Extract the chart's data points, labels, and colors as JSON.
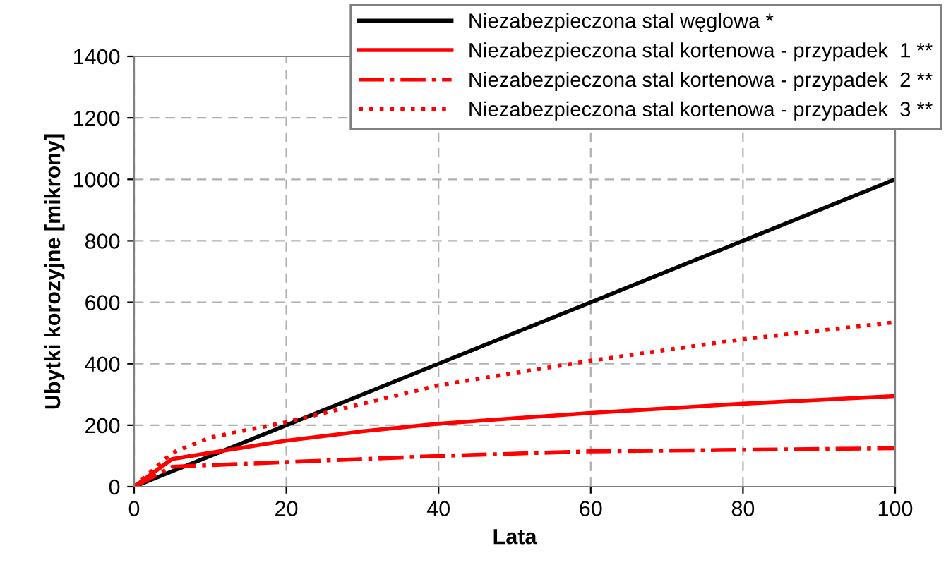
{
  "chart_data": {
    "type": "line",
    "xlabel": "Lata",
    "ylabel": "Ubytki korozyjne [mikrony]",
    "xlim": [
      0,
      100
    ],
    "xticks": [
      0,
      20,
      40,
      60,
      80,
      100
    ],
    "ylim": [
      0,
      1400
    ],
    "yticks": [
      0,
      200,
      400,
      600,
      800,
      1000,
      1200,
      1400
    ],
    "grid": true,
    "legend": "top right",
    "marker": "none",
    "series": [
      {
        "name": "Niezabezpieczona stal węglowa *",
        "color": "#000000",
        "line_style": "solid",
        "x": [
          0,
          20,
          40,
          60,
          80,
          100
        ],
        "values": [
          0,
          200,
          400,
          600,
          800,
          1000
        ]
      },
      {
        "name": "Niezabezpieczona stal kortenowa - przypadek  1 **",
        "color": "#ff0000",
        "line_style": "solid",
        "x": [
          0,
          5,
          10,
          20,
          30,
          40,
          60,
          80,
          100
        ],
        "values": [
          0,
          90,
          110,
          150,
          180,
          205,
          240,
          270,
          295
        ]
      },
      {
        "name": "Niezabezpieczona stal kortenowa - przypadek  2 **",
        "color": "#ff0000",
        "line_style": "dashdot",
        "x": [
          0,
          5,
          10,
          20,
          30,
          40,
          60,
          80,
          100
        ],
        "values": [
          0,
          65,
          70,
          80,
          90,
          100,
          115,
          120,
          125
        ]
      },
      {
        "name": "Niezabezpieczona stal kortenowa - przypadek  3 **",
        "color": "#ff0000",
        "line_style": "dotted",
        "x": [
          0,
          5,
          10,
          20,
          30,
          40,
          60,
          80,
          100
        ],
        "values": [
          0,
          110,
          160,
          210,
          270,
          330,
          410,
          480,
          535
        ]
      }
    ]
  }
}
